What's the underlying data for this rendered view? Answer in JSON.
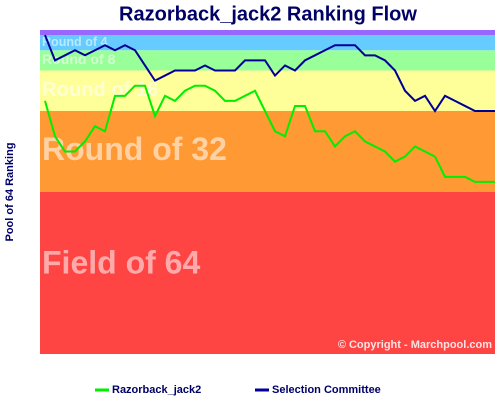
{
  "chart_data": {
    "type": "line",
    "title": "Razorback_jack2 Ranking Flow",
    "y_label": "Pool of 64 Ranking",
    "ylim": [
      64,
      0
    ],
    "bands": [
      {
        "name": "Field of 64",
        "color": "#ff4444",
        "range": [
          32,
          64
        ]
      },
      {
        "name": "Round of 32",
        "color": "#ff9933",
        "range": [
          16,
          32
        ]
      },
      {
        "name": "Round of 16",
        "color": "#ffff99",
        "range": [
          8,
          16
        ]
      },
      {
        "name": "Round of 8",
        "color": "#99ff99",
        "range": [
          4,
          8
        ]
      },
      {
        "name": "Round of 4",
        "color": "#66ccff",
        "range": [
          1,
          4
        ]
      },
      {
        "color": "#9966ff",
        "range": [
          0,
          1
        ]
      }
    ],
    "copyright": "© Copyright - Marchpool.com",
    "series": [
      {
        "name": "Razorback_jack2",
        "color": "#00ee00",
        "values": [
          14,
          21,
          24,
          24,
          22,
          19,
          20,
          13,
          13,
          11,
          11,
          17,
          13,
          14,
          12,
          11,
          11,
          12,
          14,
          14,
          13,
          12,
          16,
          20,
          21,
          15,
          15,
          20,
          20,
          23,
          21,
          20,
          22,
          23,
          24,
          26,
          25,
          23,
          24,
          25,
          29,
          29,
          29,
          30,
          30,
          30
        ]
      },
      {
        "name": "Selection Committee",
        "color": "#000099",
        "values": [
          1,
          6,
          5,
          4,
          5,
          4,
          3,
          4,
          3,
          4,
          7,
          10,
          9,
          8,
          8,
          8,
          7,
          8,
          8,
          8,
          6,
          6,
          6,
          9,
          7,
          8,
          6,
          5,
          4,
          3,
          3,
          3,
          5,
          5,
          6,
          8,
          12,
          14,
          13,
          16,
          13,
          14,
          15,
          16,
          16,
          16
        ]
      }
    ]
  }
}
